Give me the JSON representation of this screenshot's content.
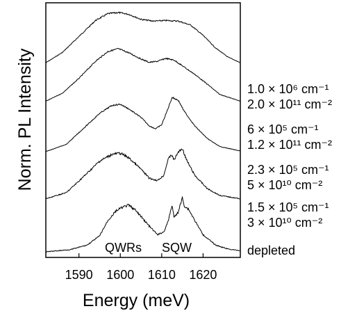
{
  "chart_data": {
    "type": "line",
    "title": "",
    "xlabel": "Energy (meV)",
    "ylabel": "Norm. PL Intensity",
    "xlim": [
      1582,
      1629
    ],
    "x_ticks": [
      1590,
      1600,
      1610,
      1620
    ],
    "x_tick_labels": [
      "1590",
      "1600",
      "1610",
      "1620"
    ],
    "grid": false,
    "legend": "none",
    "annotations": [
      "QWRs",
      "SQW"
    ],
    "y_scale": "normalized, vertically offset traces",
    "line_color": "#000000",
    "series": [
      {
        "right_labels": [
          "1.0 × 10⁶ cm⁻¹",
          "2.0 × 10¹¹ cm⁻²"
        ],
        "points": [
          [
            1582,
            0.12
          ],
          [
            1586,
            0.3
          ],
          [
            1590,
            0.58
          ],
          [
            1594,
            0.86
          ],
          [
            1597,
            0.98
          ],
          [
            1599.5,
            1.0
          ],
          [
            1602,
            0.97
          ],
          [
            1605,
            0.88
          ],
          [
            1608,
            0.85
          ],
          [
            1611,
            0.86
          ],
          [
            1614,
            0.85
          ],
          [
            1617,
            0.78
          ],
          [
            1620,
            0.6
          ],
          [
            1623,
            0.38
          ],
          [
            1626,
            0.22
          ],
          [
            1629,
            0.12
          ]
        ]
      },
      {
        "right_labels": [
          "6 × 10⁵ cm⁻¹",
          "1.2 × 10¹¹ cm⁻²"
        ],
        "points": [
          [
            1582,
            0.08
          ],
          [
            1586,
            0.22
          ],
          [
            1590,
            0.48
          ],
          [
            1594,
            0.78
          ],
          [
            1597,
            0.95
          ],
          [
            1599.5,
            1.0
          ],
          [
            1602,
            0.93
          ],
          [
            1605,
            0.82
          ],
          [
            1607,
            0.76
          ],
          [
            1609,
            0.78
          ],
          [
            1611,
            0.83
          ],
          [
            1613,
            0.8
          ],
          [
            1615,
            0.7
          ],
          [
            1618,
            0.55
          ],
          [
            1621,
            0.38
          ],
          [
            1624,
            0.2
          ],
          [
            1629,
            0.08
          ]
        ]
      },
      {
        "right_labels": [
          "2.3 × 10⁵ cm⁻¹",
          "5 × 10¹⁰ cm⁻²"
        ],
        "points": [
          [
            1582,
            0.05
          ],
          [
            1587,
            0.18
          ],
          [
            1591,
            0.45
          ],
          [
            1595,
            0.72
          ],
          [
            1598,
            0.86
          ],
          [
            1600,
            0.88
          ],
          [
            1602,
            0.8
          ],
          [
            1605,
            0.65
          ],
          [
            1607,
            0.5
          ],
          [
            1608.5,
            0.45
          ],
          [
            1610,
            0.52
          ],
          [
            1611.5,
            0.8
          ],
          [
            1612.5,
            1.0
          ],
          [
            1614,
            0.95
          ],
          [
            1615.5,
            0.75
          ],
          [
            1618,
            0.5
          ],
          [
            1621,
            0.28
          ],
          [
            1624,
            0.14
          ],
          [
            1629,
            0.06
          ]
        ]
      },
      {
        "right_labels": [
          "1.5 × 10⁵ cm⁻¹",
          "3 × 10¹⁰ cm⁻²"
        ],
        "points": [
          [
            1582,
            0.04
          ],
          [
            1587,
            0.15
          ],
          [
            1591,
            0.42
          ],
          [
            1595,
            0.7
          ],
          [
            1598,
            0.82
          ],
          [
            1600,
            0.84
          ],
          [
            1602,
            0.76
          ],
          [
            1605,
            0.56
          ],
          [
            1607,
            0.4
          ],
          [
            1609,
            0.36
          ],
          [
            1610.5,
            0.45
          ],
          [
            1611.5,
            0.72
          ],
          [
            1612.3,
            0.82
          ],
          [
            1613,
            0.72
          ],
          [
            1614,
            0.86
          ],
          [
            1615,
            0.92
          ],
          [
            1616,
            0.72
          ],
          [
            1618,
            0.45
          ],
          [
            1621,
            0.22
          ],
          [
            1624,
            0.1
          ],
          [
            1629,
            0.04
          ]
        ]
      },
      {
        "right_labels": [
          "depleted"
        ],
        "points": [
          [
            1582,
            0.0
          ],
          [
            1588,
            0.04
          ],
          [
            1592,
            0.12
          ],
          [
            1595,
            0.28
          ],
          [
            1597,
            0.55
          ],
          [
            1599,
            0.72
          ],
          [
            1600.5,
            0.78
          ],
          [
            1602,
            0.82
          ],
          [
            1603.5,
            0.74
          ],
          [
            1605,
            0.62
          ],
          [
            1607,
            0.45
          ],
          [
            1609,
            0.3
          ],
          [
            1610.5,
            0.35
          ],
          [
            1611.5,
            0.52
          ],
          [
            1612.5,
            0.82
          ],
          [
            1613,
            0.6
          ],
          [
            1614,
            0.7
          ],
          [
            1615,
            0.95
          ],
          [
            1615.5,
            0.8
          ],
          [
            1616.5,
            0.75
          ],
          [
            1618,
            0.55
          ],
          [
            1620,
            0.3
          ],
          [
            1623,
            0.12
          ],
          [
            1626,
            0.05
          ],
          [
            1629,
            0.02
          ]
        ]
      }
    ]
  }
}
